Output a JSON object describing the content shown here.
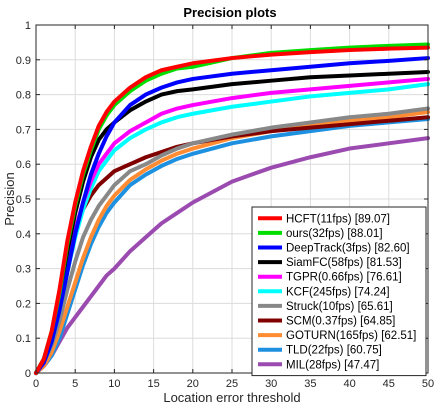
{
  "chart_data": {
    "type": "line",
    "title": "Precision plots",
    "xlabel": "Location error threshold",
    "ylabel": "Precision",
    "xlim": [
      0,
      50
    ],
    "ylim": [
      0,
      1
    ],
    "xticks": [
      0,
      5,
      10,
      15,
      20,
      25,
      30,
      35,
      40,
      45,
      50
    ],
    "yticks": [
      0,
      0.1,
      0.2,
      0.3,
      0.4,
      0.5,
      0.6,
      0.7,
      0.8,
      0.9,
      1
    ],
    "ytick_labels": [
      "0",
      "0.1",
      "0.2",
      "0.3",
      "0.4",
      "0.5",
      "0.6",
      "0.7",
      "0.8",
      "0.9",
      "1"
    ],
    "grid": true,
    "legend_position": "bottom-right",
    "x": [
      0,
      1,
      2,
      3,
      4,
      5,
      6,
      7,
      8,
      9,
      10,
      12,
      14,
      16,
      18,
      20,
      25,
      30,
      35,
      40,
      45,
      50
    ],
    "series": [
      {
        "name": "HCFT(11fps) [89.07]",
        "color": "#ff0000",
        "values": [
          0.0,
          0.04,
          0.12,
          0.24,
          0.38,
          0.49,
          0.58,
          0.65,
          0.71,
          0.75,
          0.78,
          0.82,
          0.85,
          0.87,
          0.88,
          0.89,
          0.905,
          0.915,
          0.922,
          0.928,
          0.932,
          0.935
        ]
      },
      {
        "name": "ours(32fps) [88.01]",
        "color": "#00dd00",
        "values": [
          0.0,
          0.04,
          0.12,
          0.23,
          0.37,
          0.48,
          0.57,
          0.64,
          0.7,
          0.74,
          0.77,
          0.81,
          0.84,
          0.86,
          0.875,
          0.88,
          0.905,
          0.92,
          0.928,
          0.935,
          0.94,
          0.944
        ]
      },
      {
        "name": "DeepTrack(3fps) [82.60]",
        "color": "#0000ff",
        "values": [
          0.0,
          0.03,
          0.09,
          0.18,
          0.29,
          0.4,
          0.49,
          0.57,
          0.63,
          0.68,
          0.72,
          0.77,
          0.8,
          0.82,
          0.835,
          0.845,
          0.86,
          0.87,
          0.88,
          0.89,
          0.897,
          0.905
        ]
      },
      {
        "name": "SiamFC(58fps) [81.53]",
        "color": "#000000",
        "values": [
          0.0,
          0.04,
          0.11,
          0.22,
          0.35,
          0.46,
          0.55,
          0.62,
          0.67,
          0.7,
          0.72,
          0.755,
          0.78,
          0.8,
          0.81,
          0.815,
          0.83,
          0.84,
          0.85,
          0.855,
          0.86,
          0.865
        ]
      },
      {
        "name": "TGPR(0.66fps) [76.61]",
        "color": "#ff00ff",
        "values": [
          0.0,
          0.03,
          0.1,
          0.2,
          0.31,
          0.41,
          0.49,
          0.55,
          0.6,
          0.63,
          0.66,
          0.695,
          0.72,
          0.745,
          0.76,
          0.77,
          0.79,
          0.805,
          0.815,
          0.825,
          0.835,
          0.845
        ]
      },
      {
        "name": "KCF(245fps) [74.24]",
        "color": "#00ffff",
        "values": [
          0.0,
          0.03,
          0.09,
          0.18,
          0.29,
          0.39,
          0.47,
          0.53,
          0.58,
          0.61,
          0.64,
          0.675,
          0.7,
          0.72,
          0.735,
          0.745,
          0.765,
          0.78,
          0.795,
          0.805,
          0.815,
          0.83
        ]
      },
      {
        "name": "Struck(10fps) [65.61]",
        "color": "#888888",
        "values": [
          0.0,
          0.03,
          0.08,
          0.15,
          0.24,
          0.32,
          0.39,
          0.44,
          0.48,
          0.51,
          0.54,
          0.58,
          0.6,
          0.625,
          0.645,
          0.66,
          0.685,
          0.705,
          0.72,
          0.735,
          0.745,
          0.76
        ]
      },
      {
        "name": "SCM(0.37fps) [64.85]",
        "color": "#800000",
        "values": [
          0.0,
          0.04,
          0.11,
          0.21,
          0.32,
          0.41,
          0.47,
          0.51,
          0.54,
          0.56,
          0.58,
          0.6,
          0.62,
          0.635,
          0.65,
          0.66,
          0.68,
          0.695,
          0.705,
          0.715,
          0.725,
          0.735
        ]
      },
      {
        "name": "GOTURN(165fps) [62.51]",
        "color": "#ff8c33",
        "values": [
          0.0,
          0.02,
          0.06,
          0.12,
          0.19,
          0.26,
          0.33,
          0.39,
          0.44,
          0.48,
          0.51,
          0.555,
          0.585,
          0.61,
          0.63,
          0.645,
          0.675,
          0.695,
          0.71,
          0.725,
          0.735,
          0.75
        ]
      },
      {
        "name": "TLD(22fps) [60.75]",
        "color": "#1e90e0",
        "values": [
          0.0,
          0.02,
          0.05,
          0.1,
          0.17,
          0.24,
          0.31,
          0.37,
          0.42,
          0.46,
          0.49,
          0.54,
          0.57,
          0.595,
          0.615,
          0.63,
          0.66,
          0.68,
          0.695,
          0.71,
          0.72,
          0.73
        ]
      },
      {
        "name": "MIL(28fps) [47.47]",
        "color": "#9b4bb0",
        "values": [
          0.0,
          0.02,
          0.05,
          0.09,
          0.13,
          0.16,
          0.19,
          0.22,
          0.25,
          0.28,
          0.3,
          0.35,
          0.39,
          0.43,
          0.46,
          0.49,
          0.55,
          0.59,
          0.62,
          0.645,
          0.66,
          0.675
        ]
      }
    ]
  }
}
